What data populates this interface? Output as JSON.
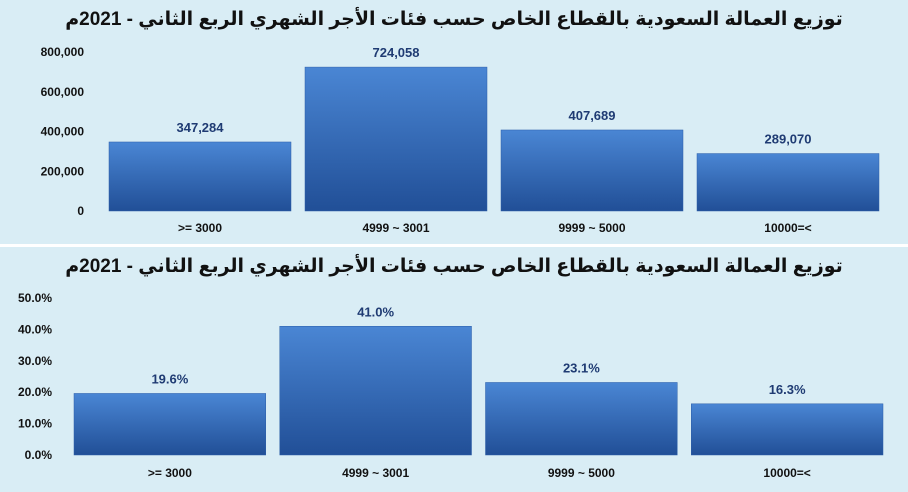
{
  "chart_data": [
    {
      "type": "bar",
      "title": "توزيع العمالة السعودية بالقطاع الخاص حسب فئات الأجر الشهري الربع الثاني - 2021م",
      "categories": [
        ">= 3000",
        "4999 ~ 3001",
        "9999 ~ 5000",
        "10000=<"
      ],
      "values": [
        347284,
        724058,
        407689,
        289070
      ],
      "data_labels": [
        "347,284",
        "724,058",
        "407,689",
        "289,070"
      ],
      "y_ticks": [
        "0",
        "200,000",
        "400,000",
        "600,000",
        "800,000"
      ],
      "ylim": [
        0,
        800000
      ],
      "grid": false,
      "legend": "none",
      "bar_color": "#3a72c2"
    },
    {
      "type": "bar",
      "title": "توزيع العمالة السعودية بالقطاع الخاص حسب فئات الأجر الشهري الربع الثاني - 2021م",
      "categories": [
        ">= 3000",
        "4999 ~ 3001",
        "9999 ~ 5000",
        "10000=<"
      ],
      "values": [
        19.6,
        41.0,
        23.1,
        16.3
      ],
      "data_labels": [
        "19.6%",
        "41.0%",
        "23.1%",
        "16.3%"
      ],
      "y_ticks": [
        "0.0%",
        "10.0%",
        "20.0%",
        "30.0%",
        "40.0%",
        "50.0%"
      ],
      "ylim": [
        0,
        50
      ],
      "grid": false,
      "legend": "none",
      "bar_color": "#3a72c2"
    }
  ]
}
